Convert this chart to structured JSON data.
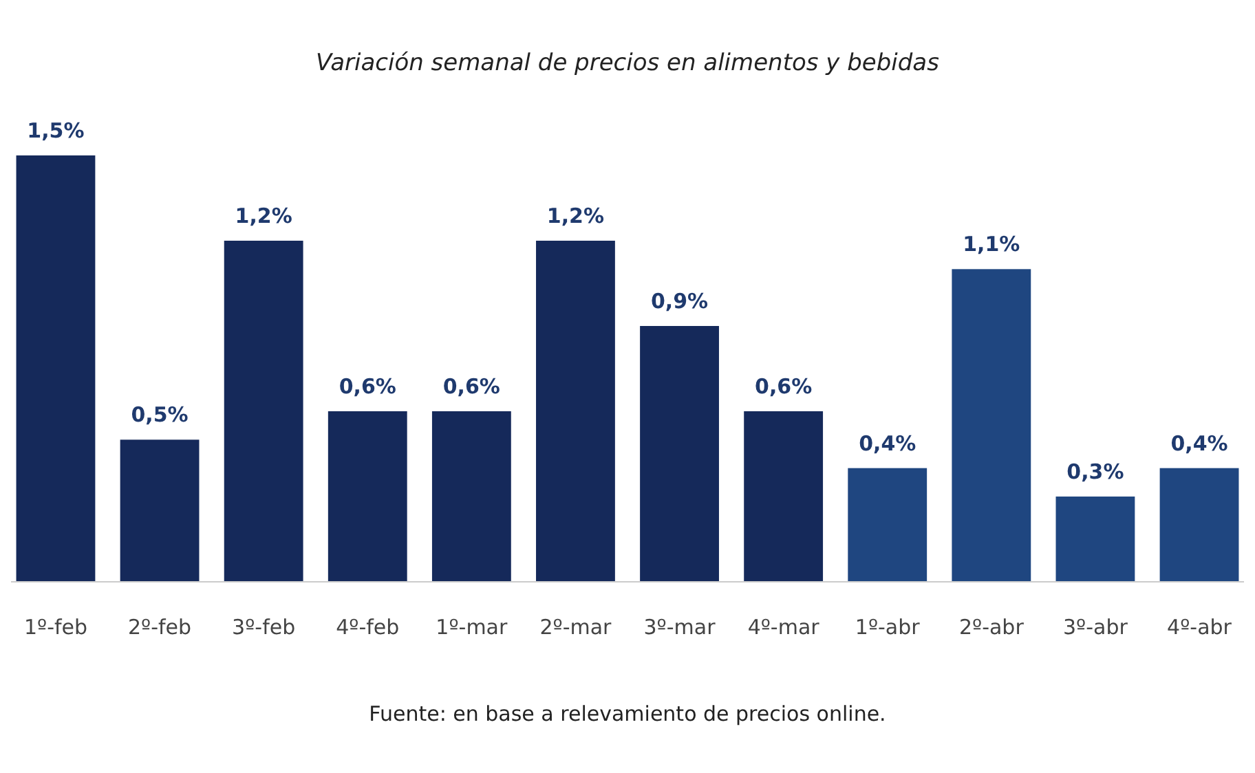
{
  "chart_data": {
    "type": "bar",
    "title": "Variación semanal de precios en alimentos y bebidas",
    "categories": [
      "1º-feb",
      "2º-feb",
      "3º-feb",
      "4º-feb",
      "1º-mar",
      "2º-mar",
      "3º-mar",
      "4º-mar",
      "1º-abr",
      "2º-abr",
      "3º-abr",
      "4º-abr"
    ],
    "values": [
      1.5,
      0.5,
      1.2,
      0.6,
      0.6,
      1.2,
      0.9,
      0.6,
      0.4,
      1.1,
      0.3,
      0.4
    ],
    "colors": [
      "#15295a",
      "#15295a",
      "#15295a",
      "#15295a",
      "#15295a",
      "#15295a",
      "#15295a",
      "#15295a",
      "#1f4680",
      "#1f4680",
      "#1f4680",
      "#1f4680"
    ],
    "value_labels": [
      "1,5%",
      "0,5%",
      "1,2%",
      "0,6%",
      "0,6%",
      "1,2%",
      "0,9%",
      "0,6%",
      "0,4%",
      "1,1%",
      "0,3%",
      "0,4%"
    ],
    "annotations": [
      "Fuente: en base a relevamiento de precios online."
    ]
  }
}
